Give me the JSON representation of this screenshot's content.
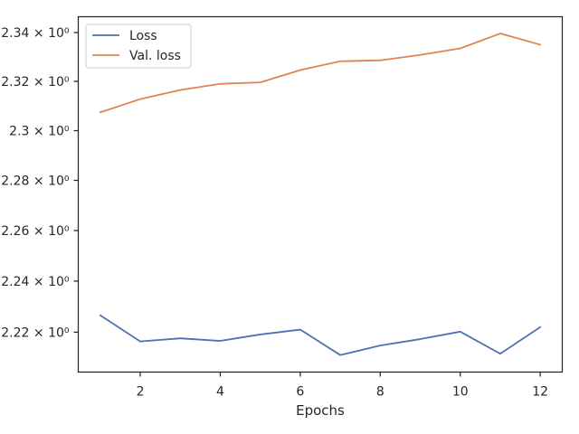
{
  "chart_data": {
    "type": "line",
    "title": "",
    "xlabel": "Epochs",
    "ylabel": "",
    "yscale": "log",
    "xlim": [
      0.45,
      12.55
    ],
    "ylim": [
      2.2045,
      2.3465
    ],
    "x": [
      1,
      2,
      3,
      4,
      5,
      6,
      7,
      8,
      9,
      10,
      11,
      12
    ],
    "x_ticks": [
      2,
      4,
      6,
      8,
      10,
      12
    ],
    "y_ticks": [
      {
        "value": 2.22,
        "label": "2.22 × 10⁰"
      },
      {
        "value": 2.24,
        "label": "2.24 × 10⁰"
      },
      {
        "value": 2.26,
        "label": "2.26 × 10⁰"
      },
      {
        "value": 2.28,
        "label": "2.28 × 10⁰"
      },
      {
        "value": 2.3,
        "label": "2.3 × 10⁰"
      },
      {
        "value": 2.32,
        "label": "2.32 × 10⁰"
      },
      {
        "value": 2.34,
        "label": "2.34 × 10⁰"
      }
    ],
    "grid": false,
    "legend_position": "top-left",
    "series": [
      {
        "name": "Loss",
        "color": "#4c72b0",
        "values": [
          2.2266,
          2.2164,
          2.2176,
          2.2166,
          2.2191,
          2.221,
          2.2111,
          2.2148,
          2.2173,
          2.2202,
          2.2116,
          2.222
        ]
      },
      {
        "name": "Val. loss",
        "color": "#dd8452",
        "values": [
          2.3074,
          2.3128,
          2.3165,
          2.319,
          2.3196,
          2.3246,
          2.3282,
          2.3286,
          2.3308,
          2.3335,
          2.3396,
          2.335
        ]
      }
    ]
  }
}
